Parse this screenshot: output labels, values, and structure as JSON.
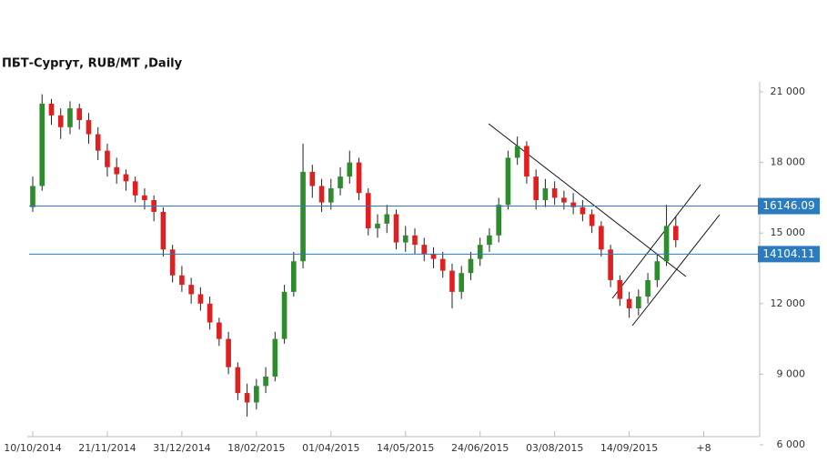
{
  "chart_data": {
    "type": "candlestick",
    "title": "ПБТ-Сургут,  RUB/MT ,Daily",
    "up_color": "#2e8b2e",
    "down_color": "#e02020",
    "wick_color": "#222222",
    "ylim": [
      6000,
      21000
    ],
    "yticks": [
      {
        "value": 6000,
        "label": "6 000"
      },
      {
        "value": 9000,
        "label": "9 000"
      },
      {
        "value": 12000,
        "label": "12 000"
      },
      {
        "value": 15000,
        "label": "15 000"
      },
      {
        "value": 18000,
        "label": "18 000"
      },
      {
        "value": 21000,
        "label": "21 000"
      }
    ],
    "xlim": [
      0,
      78
    ],
    "xticks": [
      {
        "value": 0,
        "label": "10/10/2014"
      },
      {
        "value": 8,
        "label": "21/11/2014"
      },
      {
        "value": 16,
        "label": "31/12/2014"
      },
      {
        "value": 24,
        "label": "18/02/2015"
      },
      {
        "value": 32,
        "label": "01/04/2015"
      },
      {
        "value": 40,
        "label": "14/05/2015"
      },
      {
        "value": 48,
        "label": "24/06/2015"
      },
      {
        "value": 56,
        "label": "03/08/2015"
      },
      {
        "value": 64,
        "label": "14/09/2015"
      },
      {
        "value": 72,
        "label": "+8"
      }
    ],
    "hlines": [
      16146.09,
      14104.11
    ],
    "hline_color": "#2a7bc0",
    "ohlc": [
      [
        16100,
        17400,
        15900,
        17000
      ],
      [
        17000,
        20900,
        16800,
        20500
      ],
      [
        20500,
        20700,
        19600,
        20000
      ],
      [
        20000,
        20300,
        19000,
        19500
      ],
      [
        19500,
        20600,
        19200,
        20300
      ],
      [
        20300,
        20500,
        19400,
        19800
      ],
      [
        19800,
        20100,
        18800,
        19200
      ],
      [
        19200,
        19500,
        18100,
        18500
      ],
      [
        18500,
        18800,
        17400,
        17800
      ],
      [
        17800,
        18200,
        17100,
        17500
      ],
      [
        17500,
        17700,
        16800,
        17200
      ],
      [
        17200,
        17400,
        16300,
        16600
      ],
      [
        16600,
        16900,
        16000,
        16400
      ],
      [
        16400,
        16600,
        15500,
        15900
      ],
      [
        15900,
        16100,
        14000,
        14300
      ],
      [
        14300,
        14500,
        12900,
        13200
      ],
      [
        13200,
        13600,
        12500,
        12800
      ],
      [
        12800,
        13100,
        12000,
        12400
      ],
      [
        12400,
        12700,
        11700,
        12000
      ],
      [
        12000,
        12300,
        10900,
        11200
      ],
      [
        11200,
        11400,
        10200,
        10500
      ],
      [
        10500,
        10800,
        9000,
        9300
      ],
      [
        9300,
        9500,
        7900,
        8200
      ],
      [
        8200,
        8600,
        7200,
        7800
      ],
      [
        7800,
        8800,
        7500,
        8500
      ],
      [
        8500,
        9300,
        8200,
        8900
      ],
      [
        8900,
        10800,
        8700,
        10500
      ],
      [
        10500,
        12800,
        10300,
        12500
      ],
      [
        12500,
        14200,
        12300,
        13800
      ],
      [
        13800,
        18800,
        13500,
        17600
      ],
      [
        17600,
        17900,
        16500,
        17000
      ],
      [
        17000,
        17300,
        15900,
        16300
      ],
      [
        16300,
        17300,
        16000,
        16900
      ],
      [
        16900,
        17800,
        16600,
        17400
      ],
      [
        17400,
        18500,
        17100,
        18000
      ],
      [
        18000,
        18200,
        16400,
        16700
      ],
      [
        16700,
        16900,
        14900,
        15200
      ],
      [
        15200,
        15800,
        14800,
        15400
      ],
      [
        15400,
        16200,
        15000,
        15800
      ],
      [
        15800,
        16000,
        14300,
        14600
      ],
      [
        14600,
        15300,
        14200,
        14900
      ],
      [
        14900,
        15200,
        14100,
        14500
      ],
      [
        14500,
        14800,
        13800,
        14100
      ],
      [
        14100,
        14400,
        13500,
        13900
      ],
      [
        13900,
        14200,
        13100,
        13400
      ],
      [
        13400,
        13700,
        11800,
        12500
      ],
      [
        12500,
        13600,
        12200,
        13300
      ],
      [
        13300,
        14200,
        13000,
        13900
      ],
      [
        13900,
        14800,
        13600,
        14500
      ],
      [
        14500,
        15200,
        14200,
        14900
      ],
      [
        14900,
        16500,
        14600,
        16200
      ],
      [
        16200,
        18500,
        16000,
        18200
      ],
      [
        18200,
        19100,
        17900,
        18700
      ],
      [
        18700,
        18900,
        17100,
        17400
      ],
      [
        17400,
        17700,
        16000,
        16400
      ],
      [
        16400,
        17300,
        16100,
        16900
      ],
      [
        16900,
        17200,
        16200,
        16500
      ],
      [
        16500,
        16800,
        16000,
        16300
      ],
      [
        16300,
        16700,
        15800,
        16100
      ],
      [
        16100,
        16400,
        15500,
        15800
      ],
      [
        15800,
        16000,
        15000,
        15300
      ],
      [
        15300,
        15500,
        14000,
        14300
      ],
      [
        14300,
        14500,
        12700,
        13000
      ],
      [
        13000,
        13200,
        11900,
        12200
      ],
      [
        12200,
        12500,
        11400,
        11800
      ],
      [
        11800,
        12600,
        11500,
        12300
      ],
      [
        12300,
        13300,
        12000,
        13000
      ],
      [
        13000,
        14100,
        12700,
        13800
      ],
      [
        13800,
        16200,
        13600,
        15300
      ],
      [
        15300,
        15700,
        14400,
        14700
      ]
    ]
  }
}
